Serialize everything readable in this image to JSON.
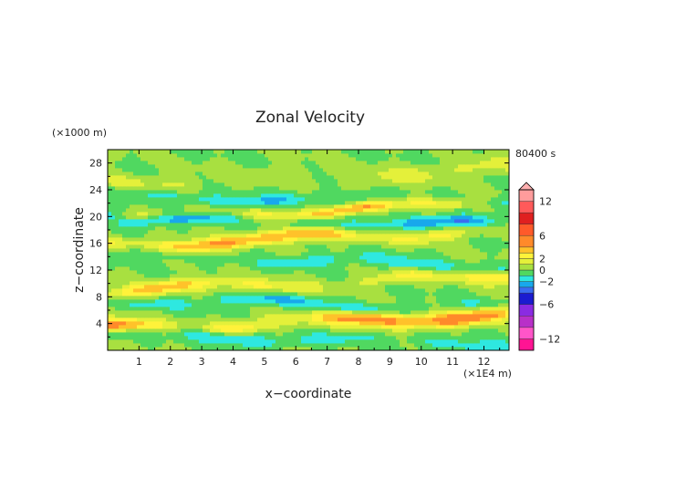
{
  "chart_data": {
    "type": "heatmap",
    "title": "Zonal Velocity",
    "xlabel": "x−coordinate",
    "ylabel": "z−coordinate",
    "x_multiplier": "(×1E4 m)",
    "y_multiplier": "(×1000 m)",
    "time_label": "80400 s",
    "xlim": [
      0,
      12.8
    ],
    "ylim": [
      0,
      30
    ],
    "x_ticks": [
      1,
      2,
      3,
      4,
      5,
      6,
      7,
      8,
      9,
      10,
      11,
      12
    ],
    "y_ticks": [
      4,
      8,
      12,
      16,
      20,
      24,
      28
    ],
    "colorbar": {
      "ticks": [
        12,
        6,
        2,
        0,
        -2,
        -6,
        -12
      ],
      "levels": [
        -14,
        -12,
        -10,
        -8,
        -6,
        -4,
        -3,
        -2,
        -1,
        0,
        1,
        2,
        3,
        4,
        6,
        8,
        10,
        12,
        14
      ],
      "colors": [
        "#ff1493",
        "#ff55c8",
        "#b830c8",
        "#8a2be2",
        "#1b1bd0",
        "#3a6cf0",
        "#18a8ec",
        "#2ee8e0",
        "#50d860",
        "#a8e040",
        "#e4f03a",
        "#fff23a",
        "#ffc22a",
        "#ff8a2a",
        "#ff5a2a",
        "#e02020",
        "#ff5a5a",
        "#ff9c9c"
      ],
      "extend_max_color": "#ffb0b0"
    },
    "bands": [
      {
        "z": 1.8,
        "amp": -2.2,
        "width": 0.9
      },
      {
        "z": 4.2,
        "amp": 4.5,
        "width": 1.1
      },
      {
        "z": 7.0,
        "amp": -1.8,
        "width": 0.9
      },
      {
        "z": 10.0,
        "amp": 2.8,
        "width": 1.0
      },
      {
        "z": 13.4,
        "amp": -1.6,
        "width": 0.9
      },
      {
        "z": 16.8,
        "amp": 3.8,
        "width": 1.0
      },
      {
        "z": 19.4,
        "amp": -2.6,
        "width": 0.9
      },
      {
        "z": 20.8,
        "amp": 3.2,
        "width": 0.8
      },
      {
        "z": 22.6,
        "amp": -1.8,
        "width": 0.9
      },
      {
        "z": 26.0,
        "amp": 1.2,
        "width": 1.4
      }
    ]
  }
}
